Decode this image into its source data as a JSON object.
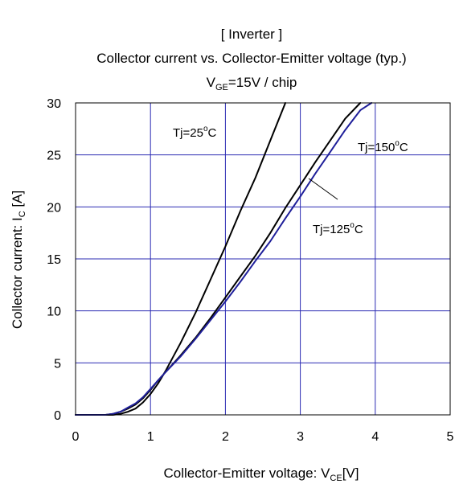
{
  "chart_data": {
    "type": "line",
    "title_lines": [
      "[ Inverter ]",
      "Collector current vs. Collector-Emitter voltage (typ.)"
    ],
    "subtitle": {
      "main": "V",
      "sub": "GE",
      "rest": "=15V / chip"
    },
    "xlabel": {
      "main": "Collector-Emitter voltage: V",
      "sub": "CE",
      "rest": "[V]"
    },
    "ylabel": {
      "main": "Collector current: I",
      "sub": "C",
      "rest": " [A]"
    },
    "xlim": [
      0,
      5
    ],
    "ylim": [
      0,
      30
    ],
    "xticks": [
      "0",
      "1",
      "2",
      "3",
      "4",
      "5"
    ],
    "yticks": [
      "0",
      "5",
      "10",
      "15",
      "20",
      "25",
      "30"
    ],
    "grid": true,
    "colors": {
      "grid": "#2b2bb3",
      "tj25": "#000000",
      "tj125": "#000000",
      "tj150": "#1f1f9a"
    },
    "series": [
      {
        "name": "Tj=25°C",
        "x": [
          0,
          0.5,
          0.6,
          0.7,
          0.8,
          0.9,
          1.0,
          1.1,
          1.2,
          1.4,
          1.6,
          1.8,
          2.0,
          2.2,
          2.4,
          2.6,
          2.8
        ],
        "y": [
          0,
          0,
          0.1,
          0.3,
          0.6,
          1.2,
          2.0,
          3.0,
          4.2,
          6.9,
          9.8,
          13.0,
          16.2,
          19.6,
          22.8,
          26.4,
          30
        ]
      },
      {
        "name": "Tj=125°C",
        "x": [
          0,
          0.4,
          0.5,
          0.6,
          0.7,
          0.8,
          0.9,
          1.0,
          1.1,
          1.2,
          1.4,
          1.6,
          1.8,
          2.0,
          2.2,
          2.4,
          2.6,
          2.8,
          3.0,
          3.2,
          3.4,
          3.6,
          3.8
        ],
        "y": [
          0,
          0,
          0.1,
          0.3,
          0.6,
          1.0,
          1.6,
          2.4,
          3.3,
          4.1,
          5.7,
          7.4,
          9.3,
          11.3,
          13.3,
          15.3,
          17.5,
          19.9,
          22.1,
          24.3,
          26.4,
          28.5,
          30
        ]
      },
      {
        "name": "Tj=150°C",
        "x": [
          0,
          0.4,
          0.5,
          0.6,
          0.7,
          0.8,
          0.9,
          1.0,
          1.1,
          1.2,
          1.4,
          1.6,
          1.8,
          2.0,
          2.2,
          2.4,
          2.6,
          2.8,
          3.0,
          3.2,
          3.4,
          3.6,
          3.8,
          3.95
        ],
        "y": [
          0,
          0,
          0.1,
          0.3,
          0.7,
          1.1,
          1.7,
          2.5,
          3.3,
          4.1,
          5.6,
          7.3,
          9.1,
          10.9,
          12.8,
          14.8,
          16.7,
          18.9,
          21.0,
          23.2,
          25.3,
          27.4,
          29.3,
          30
        ]
      }
    ],
    "annotations": [
      {
        "label": "Tj=25",
        "deg": "o",
        "unit": "C"
      },
      {
        "label": "Tj=150",
        "deg": "o",
        "unit": "C"
      },
      {
        "label": "Tj=125",
        "deg": "o",
        "unit": "C"
      }
    ]
  }
}
